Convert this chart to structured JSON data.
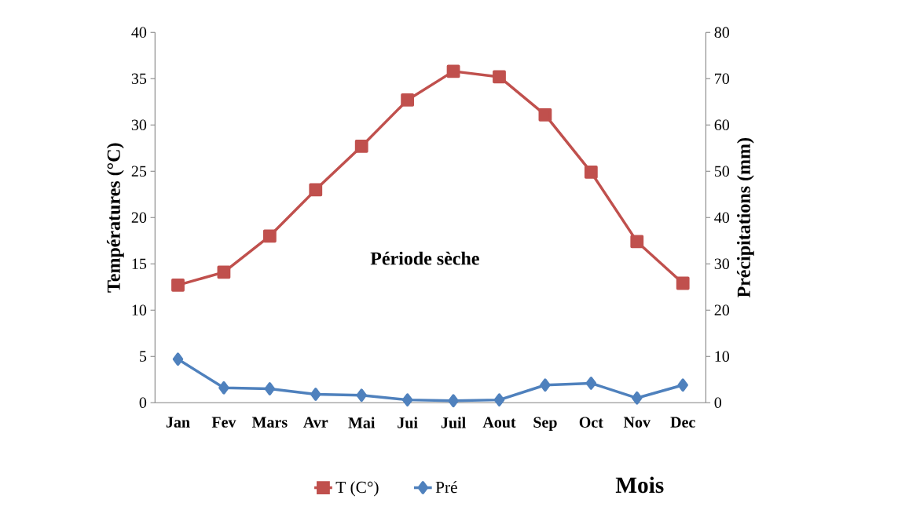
{
  "chart_data": {
    "type": "line",
    "categories": [
      "Jan",
      "Fev",
      "Mars",
      "Avr",
      "Mai",
      "Jui",
      "Juil",
      "Aout",
      "Sep",
      "Oct",
      "Nov",
      "Dec"
    ],
    "series": [
      {
        "name": "T (C°)",
        "color": "#c0504d",
        "marker": "square",
        "values": [
          12.7,
          14.1,
          18.0,
          23.0,
          27.7,
          32.7,
          35.8,
          35.2,
          31.1,
          24.9,
          17.4,
          12.9
        ]
      },
      {
        "name": "Pré",
        "color": "#4f81bd",
        "marker": "diamond",
        "axis": "y2",
        "values": [
          9.4,
          3.2,
          3.0,
          1.8,
          1.6,
          0.6,
          0.4,
          0.6,
          3.8,
          4.2,
          1.0,
          3.8
        ]
      }
    ],
    "ylabel": "Températures (°C)",
    "y2label": "Précipitations (mm)",
    "xlabel": "Mois",
    "ylim": [
      0,
      40
    ],
    "yticks": [
      0,
      5,
      10,
      15,
      20,
      25,
      30,
      35,
      40
    ],
    "y2lim": [
      0,
      80
    ],
    "y2ticks": [
      0,
      10,
      20,
      30,
      40,
      50,
      60,
      70,
      80
    ],
    "annotations": [
      "Période sèche"
    ],
    "legend": "bottom",
    "grid": false
  }
}
